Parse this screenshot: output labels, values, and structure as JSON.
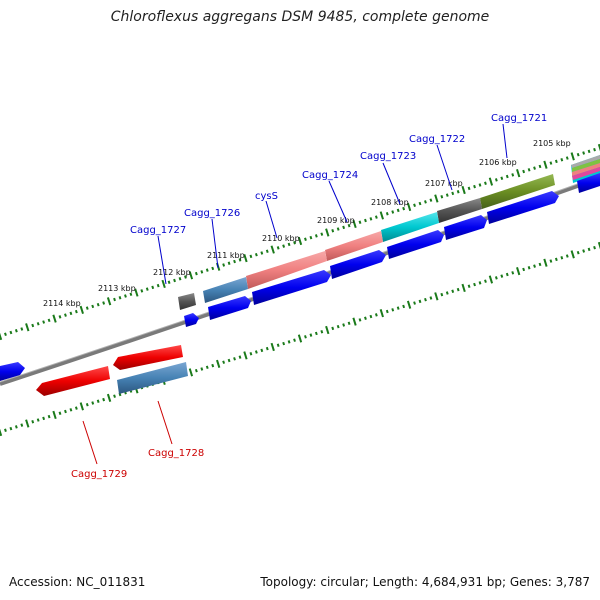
{
  "title": "Chloroflexus aggregans DSM 9485, complete genome",
  "footer": {
    "accession": "Accession: NC_011831",
    "topology": "Topology: circular; Length: 4,684,931 bp; Genes: 3,787"
  },
  "colors": {
    "forward_cds": "#0000ee",
    "reverse_cds": "#ee0000",
    "backbone": "#808080",
    "tick": "#1a7a1a",
    "label_forward": "#0000cc",
    "label_reverse": "#cc0000"
  },
  "tick_labels": [
    "2105 kbp",
    "2106 kbp",
    "2107 kbp",
    "2108 kbp",
    "2109 kbp",
    "2110 kbp",
    "2111 kbp",
    "2112 kbp",
    "2113 kbp",
    "2114 kbp"
  ],
  "forward_labels": [
    "Cagg_1721",
    "Cagg_1722",
    "Cagg_1723",
    "Cagg_1724",
    "cysS",
    "Cagg_1726",
    "Cagg_1727"
  ],
  "reverse_labels": [
    "Cagg_1728",
    "Cagg_1729"
  ],
  "feature_colors": {
    "olive": "#6b8e23",
    "dark_gray": "#555555",
    "cyan": "#00c8d0",
    "salmon": "#f08080",
    "steel_blue": "#4682b4",
    "red": "#ee0000"
  }
}
